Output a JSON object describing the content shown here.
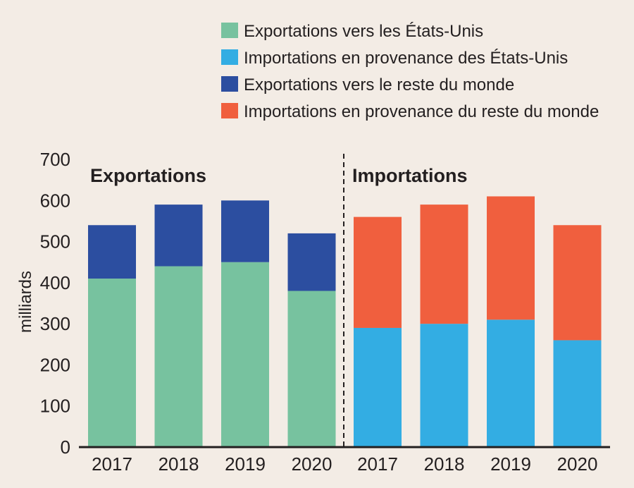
{
  "chart_data": {
    "type": "bar",
    "stacked": true,
    "ylabel": "milliards",
    "ylim": [
      0,
      700
    ],
    "yticks": [
      "0",
      "100",
      "200",
      "300",
      "400",
      "500",
      "600",
      "700"
    ],
    "grid": false,
    "legend_position": "top-right",
    "colors": {
      "exports_us": "#77c29f",
      "imports_us": "#33ade3",
      "exports_rest": "#2c4ea0",
      "imports_rest": "#f05f3e"
    },
    "legend": [
      {
        "key": "exports_us",
        "label": "Exportations vers les États-Unis"
      },
      {
        "key": "imports_us",
        "label": "Importations en provenance des États-Unis"
      },
      {
        "key": "exports_rest",
        "label": "Exportations vers le reste du monde"
      },
      {
        "key": "imports_rest",
        "label": "Importations en provenance du reste du monde"
      }
    ],
    "panels": [
      {
        "title": "Exportations",
        "categories": [
          "2017",
          "2018",
          "2019",
          "2020"
        ],
        "series": [
          {
            "key": "exports_us",
            "name": "Exportations vers les États-Unis",
            "values": [
              410,
              440,
              450,
              380
            ]
          },
          {
            "key": "exports_rest",
            "name": "Exportations vers le reste du monde",
            "values": [
              130,
              150,
              150,
              140
            ]
          }
        ]
      },
      {
        "title": "Importations",
        "categories": [
          "2017",
          "2018",
          "2019",
          "2020"
        ],
        "series": [
          {
            "key": "imports_us",
            "name": "Importations en provenance des États-Unis",
            "values": [
              290,
              300,
              310,
              260
            ]
          },
          {
            "key": "imports_rest",
            "name": "Importations en provenance du reste du monde",
            "values": [
              270,
              290,
              300,
              280
            ]
          }
        ]
      }
    ]
  }
}
